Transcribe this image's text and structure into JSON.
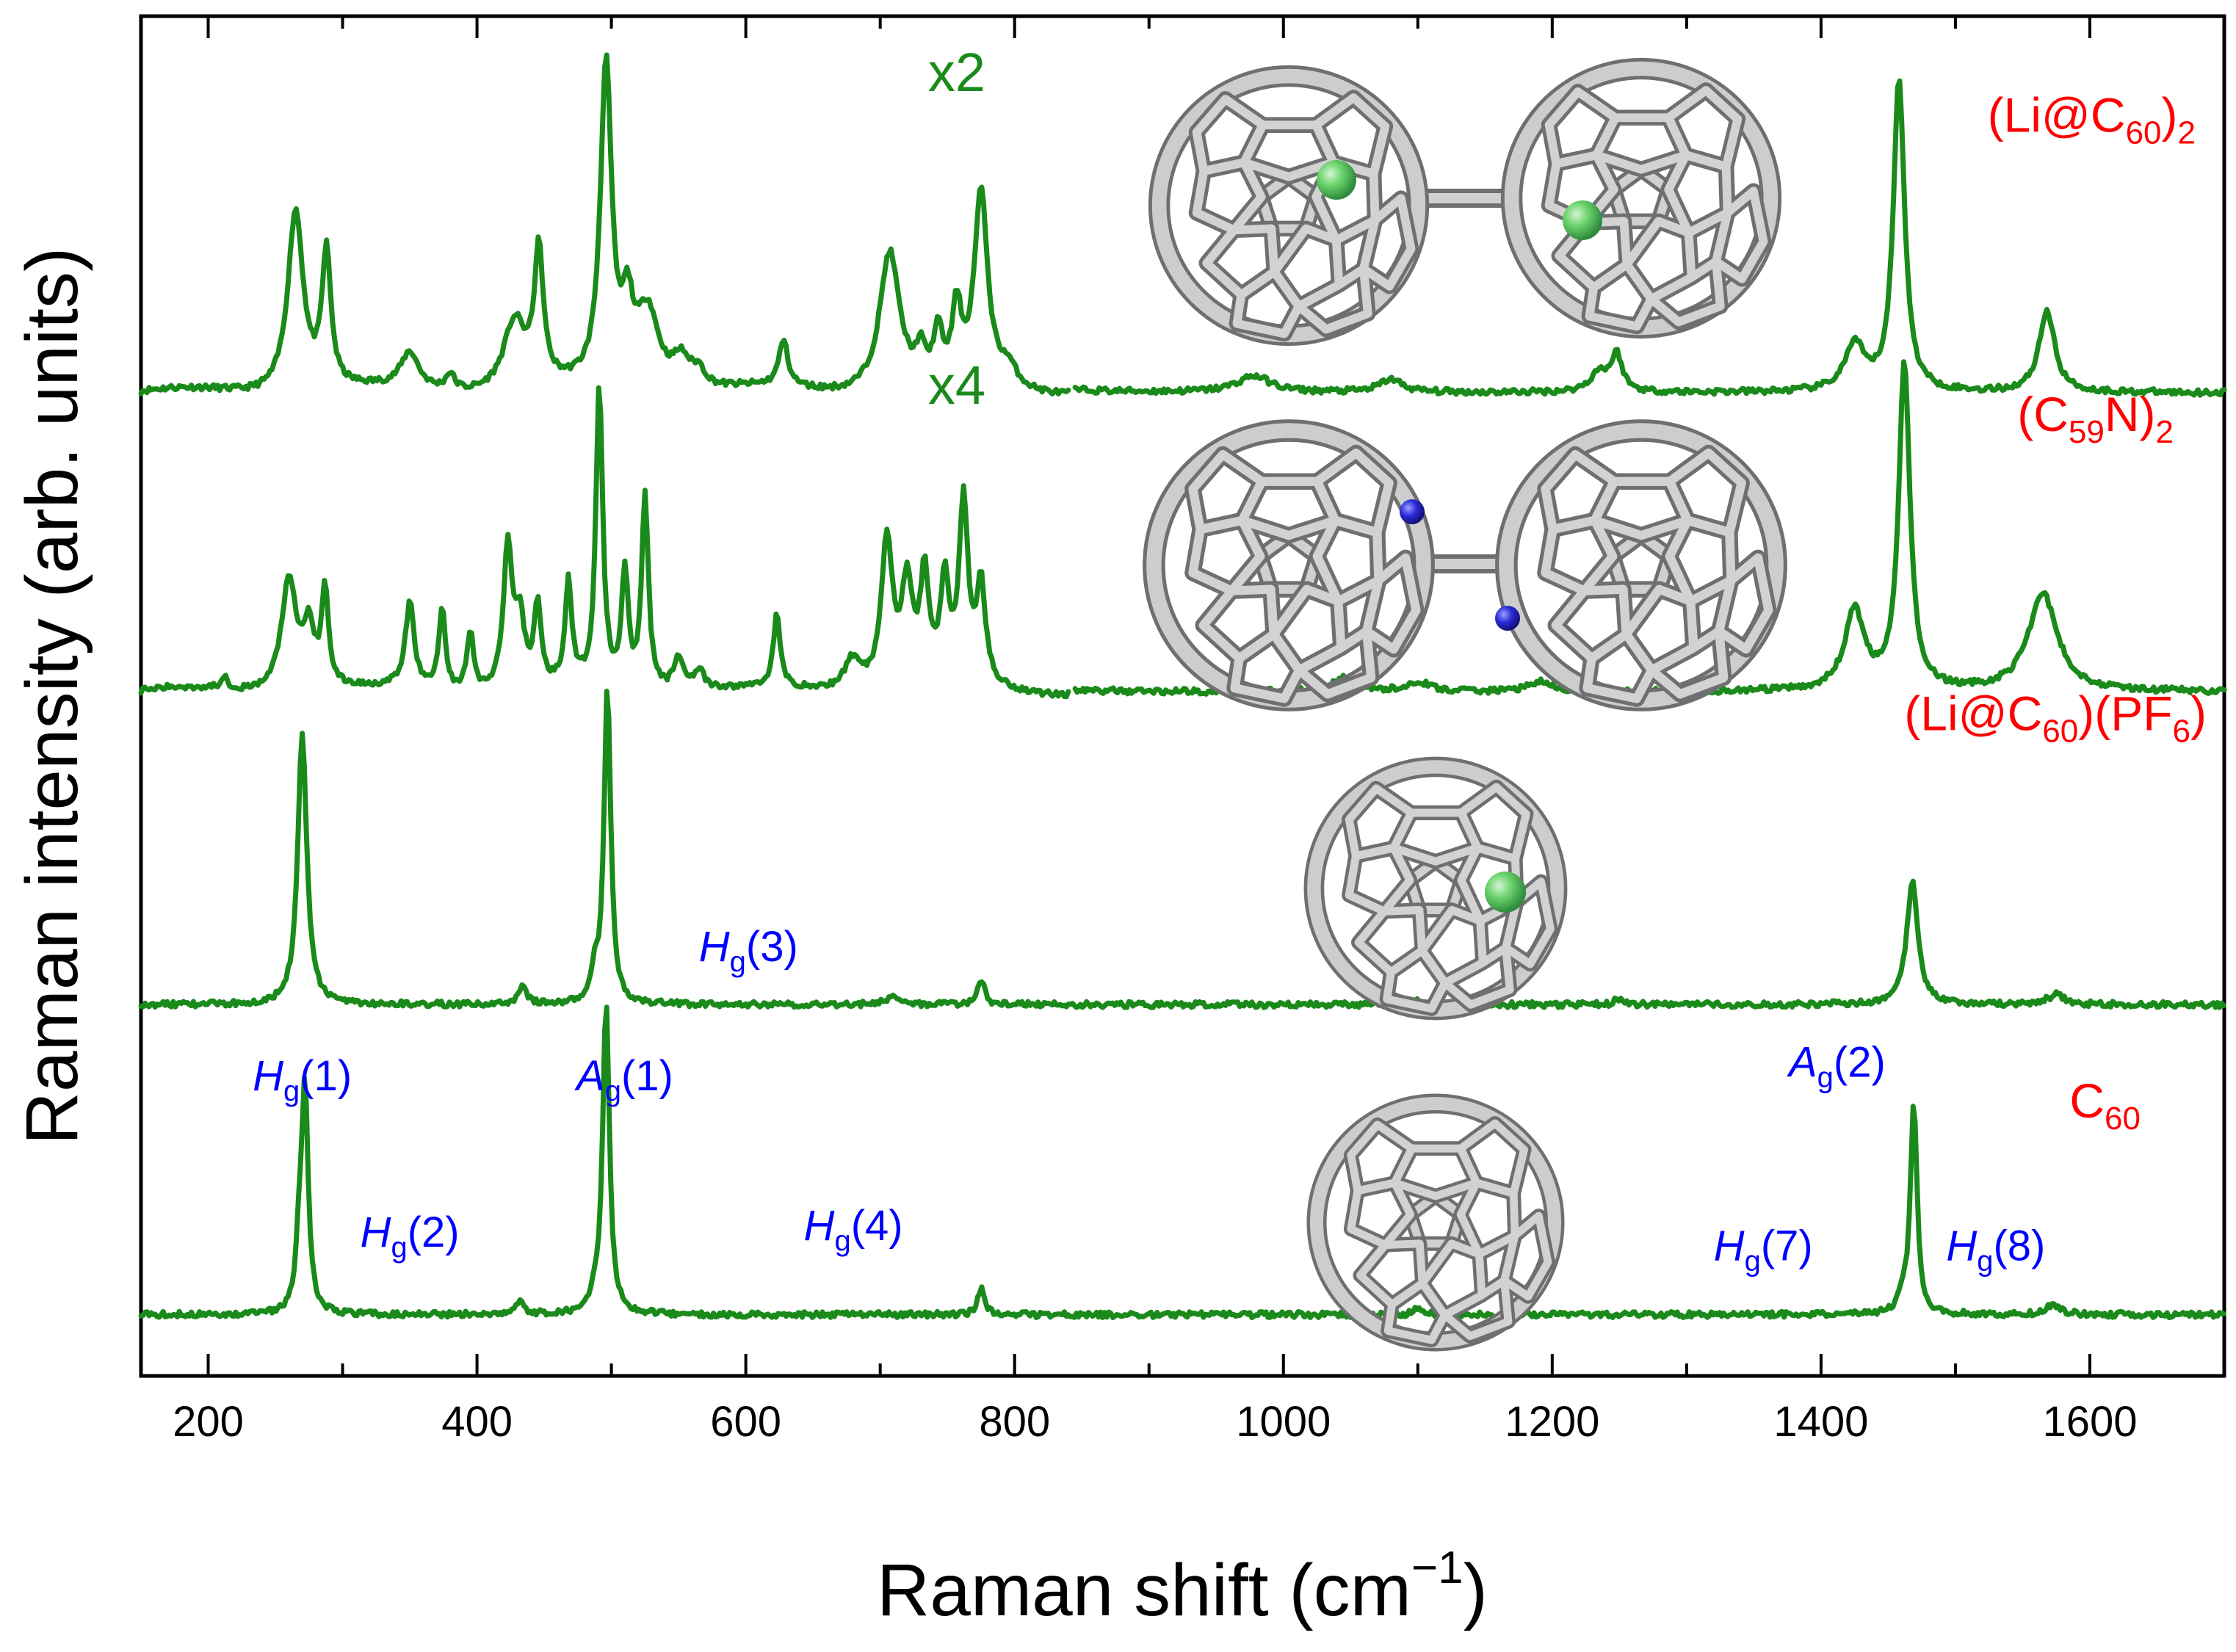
{
  "colors": {
    "spectrum": "#1a8a1a",
    "sample_label": "#ff0000",
    "mode_label": "#0000ff",
    "axis": "#000000"
  },
  "chart_data": {
    "type": "line",
    "xlabel": "Raman shift (cm",
    "xlabel_sup": "−1",
    "xlabel_end": ")",
    "ylabel": "Raman intensity (arb. units)",
    "xlim": [
      150,
      1700
    ],
    "x_ticks": [
      200,
      400,
      600,
      800,
      1000,
      1200,
      1400,
      1600
    ],
    "x_tick_labels": [
      "200",
      "400",
      "600",
      "800",
      "1000",
      "1200",
      "1400",
      "1600"
    ],
    "x_minor_step": 100,
    "y_ticks_shown": false,
    "series": [
      {
        "name": "(Li@C60)2",
        "label_parts": [
          "(Li@C",
          "60",
          ")",
          "2"
        ],
        "baseline_frac": 0.277,
        "split_at": 840,
        "scale_label": "x2",
        "scale_x": 757,
        "peaks": [
          [
            265,
            0.56,
            7
          ],
          [
            288,
            0.41,
            4
          ],
          [
            350,
            0.11,
            8
          ],
          [
            380,
            0.05,
            4
          ],
          [
            428,
            0.21,
            10
          ],
          [
            446,
            0.4,
            4
          ],
          [
            496,
            0.98,
            5
          ],
          [
            512,
            0.21,
            5
          ],
          [
            527,
            0.24,
            10
          ],
          [
            552,
            0.09,
            8
          ],
          [
            565,
            0.05,
            6
          ],
          [
            628,
            0.14,
            4
          ],
          [
            707,
            0.43,
            9
          ],
          [
            730,
            0.09,
            4
          ],
          [
            743,
            0.15,
            4
          ],
          [
            757,
            0.22,
            4
          ],
          [
            775,
            0.59,
            6
          ],
          [
            795,
            0.06,
            8
          ],
          [
            978,
            0.05,
            15
          ],
          [
            1080,
            0.04,
            10
          ],
          [
            1235,
            0.06,
            8
          ],
          [
            1248,
            0.11,
            5
          ],
          [
            1425,
            0.14,
            9
          ],
          [
            1458,
            0.96,
            5
          ],
          [
            1568,
            0.25,
            7
          ]
        ]
      },
      {
        "name": "(C59N)2",
        "label_parts": [
          "(C",
          "59",
          "N)",
          "2"
        ],
        "baseline_frac": 0.497,
        "split_at": 840,
        "scale_label": "x4",
        "scale_x": 757,
        "peaks": [
          [
            212,
            0.04,
            3
          ],
          [
            260,
            0.34,
            7
          ],
          [
            275,
            0.18,
            5
          ],
          [
            287,
            0.3,
            3
          ],
          [
            350,
            0.26,
            4
          ],
          [
            374,
            0.25,
            3
          ],
          [
            395,
            0.18,
            3
          ],
          [
            423,
            0.44,
            4
          ],
          [
            432,
            0.2,
            4
          ],
          [
            445,
            0.25,
            3
          ],
          [
            468,
            0.31,
            3
          ],
          [
            491,
            0.92,
            3
          ],
          [
            510,
            0.35,
            3
          ],
          [
            525,
            0.6,
            3
          ],
          [
            550,
            0.1,
            5
          ],
          [
            565,
            0.06,
            5
          ],
          [
            623,
            0.22,
            3
          ],
          [
            680,
            0.1,
            8
          ],
          [
            705,
            0.46,
            5
          ],
          [
            720,
            0.3,
            5
          ],
          [
            733,
            0.32,
            4
          ],
          [
            748,
            0.3,
            4
          ],
          [
            762,
            0.55,
            4
          ],
          [
            775,
            0.3,
            4
          ],
          [
            1045,
            0.04,
            10
          ],
          [
            1100,
            0.03,
            10
          ],
          [
            1190,
            0.03,
            10
          ],
          [
            1425,
            0.24,
            9
          ],
          [
            1462,
            1.0,
            5
          ],
          [
            1565,
            0.3,
            13
          ]
        ]
      },
      {
        "name": "(Li@C60)(PF6)",
        "label_parts": [
          "(Li@C",
          "60",
          ")(PF",
          "6",
          ")"
        ],
        "baseline_frac": 0.727,
        "peaks": [
          [
            270,
            0.84,
            4
          ],
          [
            434,
            0.05,
            4
          ],
          [
            488,
            0.08,
            3
          ],
          [
            497,
            0.97,
            3
          ],
          [
            710,
            0.03,
            6
          ],
          [
            775,
            0.08,
            3
          ],
          [
            1100,
            0.02,
            4
          ],
          [
            1250,
            0.02,
            4
          ],
          [
            1468,
            0.38,
            5
          ],
          [
            1575,
            0.03,
            8
          ]
        ]
      },
      {
        "name": "C60",
        "label_parts": [
          "C",
          "60"
        ],
        "baseline_frac": 0.955,
        "peaks": [
          [
            268,
            0.18,
            3
          ],
          [
            272,
            0.66,
            3
          ],
          [
            432,
            0.04,
            4
          ],
          [
            488,
            0.04,
            3
          ],
          [
            496,
            0.96,
            3
          ],
          [
            775,
            0.08,
            3
          ],
          [
            1100,
            0.02,
            4
          ],
          [
            1461,
            0.04,
            4
          ],
          [
            1469,
            0.64,
            3
          ],
          [
            1573,
            0.03,
            7
          ]
        ]
      }
    ],
    "mode_labels": [
      {
        "sym": "H",
        "sub": "g",
        "num": "(1)",
        "x": 270,
        "frac": 0.79
      },
      {
        "sym": "H",
        "sub": "g",
        "num": "(2)",
        "x": 350,
        "frac": 0.905
      },
      {
        "sym": "A",
        "sub": "g",
        "num": "(1)",
        "x": 510,
        "frac": 0.79
      },
      {
        "sym": "H",
        "sub": "g",
        "num": "(3)",
        "x": 602,
        "frac": 0.695
      },
      {
        "sym": "H",
        "sub": "g",
        "num": "(4)",
        "x": 680,
        "frac": 0.9
      },
      {
        "sym": "A",
        "sub": "g",
        "num": "(2)",
        "x": 1412,
        "frac": 0.78
      },
      {
        "sym": "H",
        "sub": "g",
        "num": "(7)",
        "x": 1357,
        "frac": 0.915
      },
      {
        "sym": "H",
        "sub": "g",
        "num": "(8)",
        "x": 1530,
        "frac": 0.915
      }
    ]
  }
}
